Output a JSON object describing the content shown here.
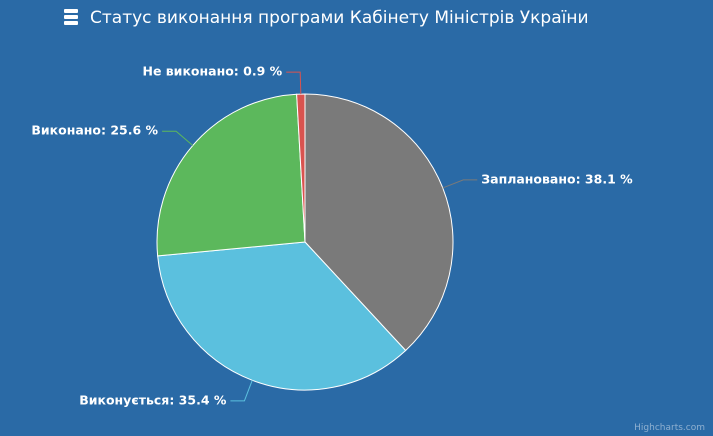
{
  "chart_data": {
    "type": "pie",
    "title": "Статус виконання програми Кабінету Міністрів України",
    "values": [
      38.1,
      35.4,
      25.6,
      0.9
    ],
    "value_labels": [
      "Заплановано: 38.1 %",
      "Виконується: 35.4 %",
      "Виконано: 25.6 %",
      "Не виконано: 0.9 %"
    ],
    "colors": [
      "#7a7a7a",
      "#5bc0de",
      "#5cb85c",
      "#d9534f"
    ],
    "credits": "Highcharts.com"
  }
}
